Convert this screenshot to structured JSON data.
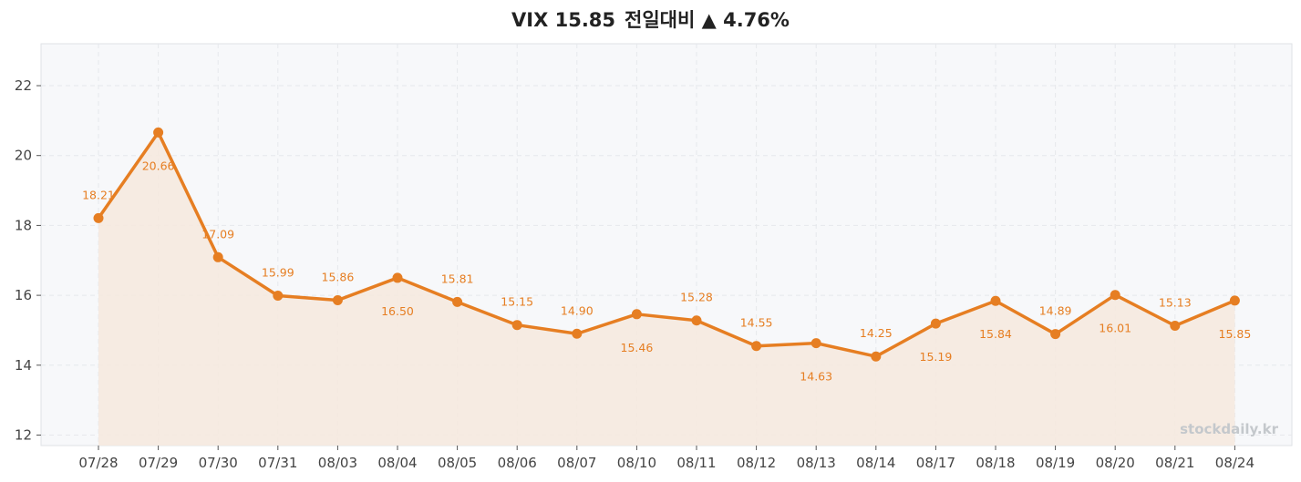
{
  "title": {
    "symbol": "VIX",
    "value": "15.85",
    "change_label": "전일대비",
    "change": "▲ 4.76%"
  },
  "watermark": "stockdaily.kr",
  "colors": {
    "line": "#e67e22",
    "fill": "#f5e9df",
    "plot_bg": "#f7f8fa",
    "grid": "#e6e8ec"
  },
  "chart_data": {
    "type": "line",
    "title": "VIX 15.85 전일대비 ▲ 4.76%",
    "xlabel": "",
    "ylabel": "",
    "categories": [
      "07/28",
      "07/29",
      "07/30",
      "07/31",
      "08/03",
      "08/04",
      "08/05",
      "08/06",
      "08/07",
      "08/10",
      "08/11",
      "08/12",
      "08/13",
      "08/14",
      "08/17",
      "08/18",
      "08/19",
      "08/20",
      "08/21",
      "08/24"
    ],
    "values": [
      18.21,
      20.66,
      17.09,
      15.99,
      15.86,
      16.5,
      15.81,
      15.15,
      14.9,
      15.46,
      15.28,
      14.55,
      14.63,
      14.25,
      15.19,
      15.84,
      14.89,
      16.01,
      15.13,
      15.85
    ],
    "data_labels": [
      "18.21",
      "20.66",
      "17.09",
      "15.99",
      "15.86",
      "16.50",
      "15.81",
      "15.15",
      "14.90",
      "15.46",
      "15.28",
      "14.55",
      "14.63",
      "14.25",
      "15.19",
      "15.84",
      "14.89",
      "16.01",
      "15.13",
      "15.85"
    ],
    "yticks": [
      12,
      14,
      16,
      18,
      20,
      22
    ],
    "ylim": [
      11.7,
      23.2
    ],
    "grid": true,
    "area_fill": true
  }
}
